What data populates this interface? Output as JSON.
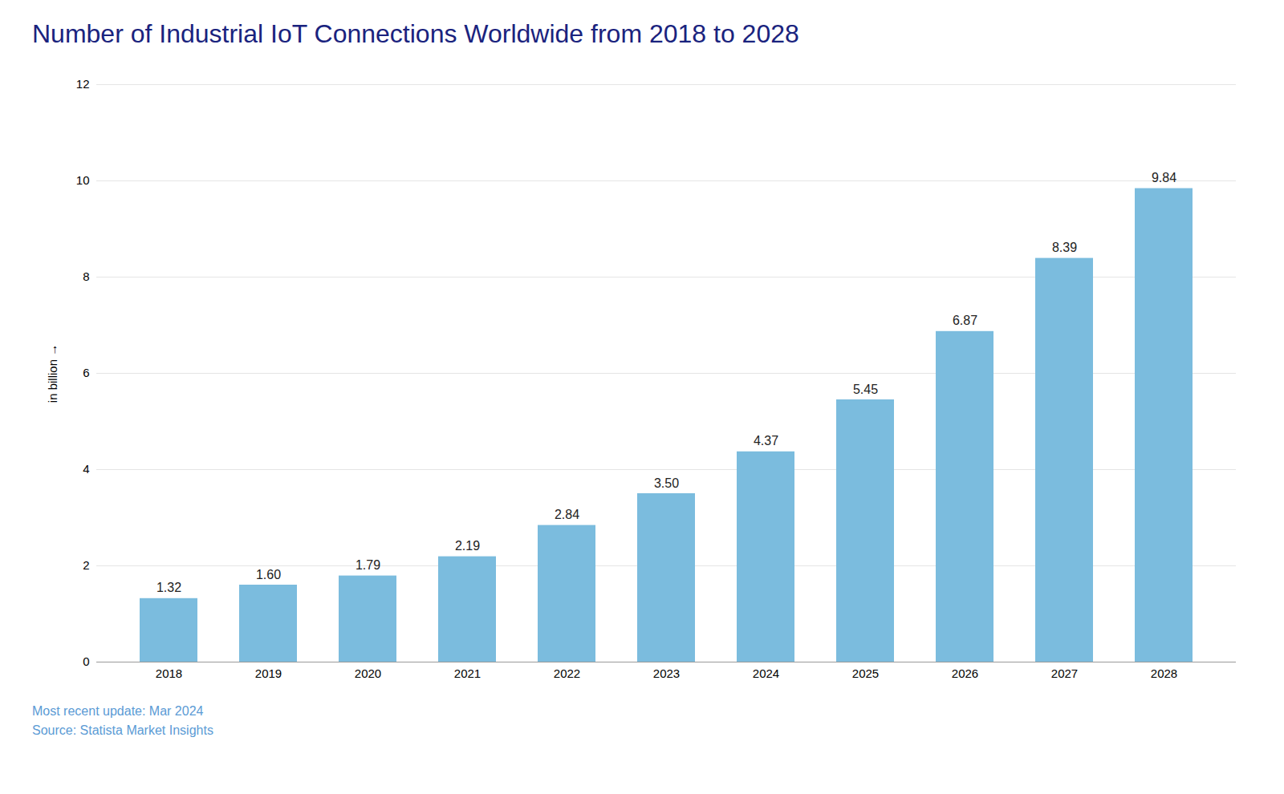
{
  "chart_data": {
    "type": "bar",
    "title": "Number of Industrial IoT Connections Worldwide from 2018 to 2028",
    "ylabel": "in billion",
    "categories": [
      "2018",
      "2019",
      "2020",
      "2021",
      "2022",
      "2023",
      "2024",
      "2025",
      "2026",
      "2027",
      "2028"
    ],
    "values": [
      1.32,
      1.6,
      1.79,
      2.19,
      2.84,
      3.5,
      4.37,
      5.45,
      6.87,
      8.39,
      9.84
    ],
    "value_labels": [
      "1.32",
      "1.60",
      "1.79",
      "2.19",
      "2.84",
      "3.50",
      "4.37",
      "5.45",
      "6.87",
      "8.39",
      "9.84"
    ],
    "color": "#7BBCDE",
    "ylim": [
      0,
      12
    ],
    "yticks": [
      0,
      2,
      4,
      6,
      8,
      10,
      12
    ],
    "grid": true,
    "data_labels": true,
    "annotations": [
      "Most recent update: Mar 2024",
      "Source: Statista Market Insights"
    ]
  }
}
